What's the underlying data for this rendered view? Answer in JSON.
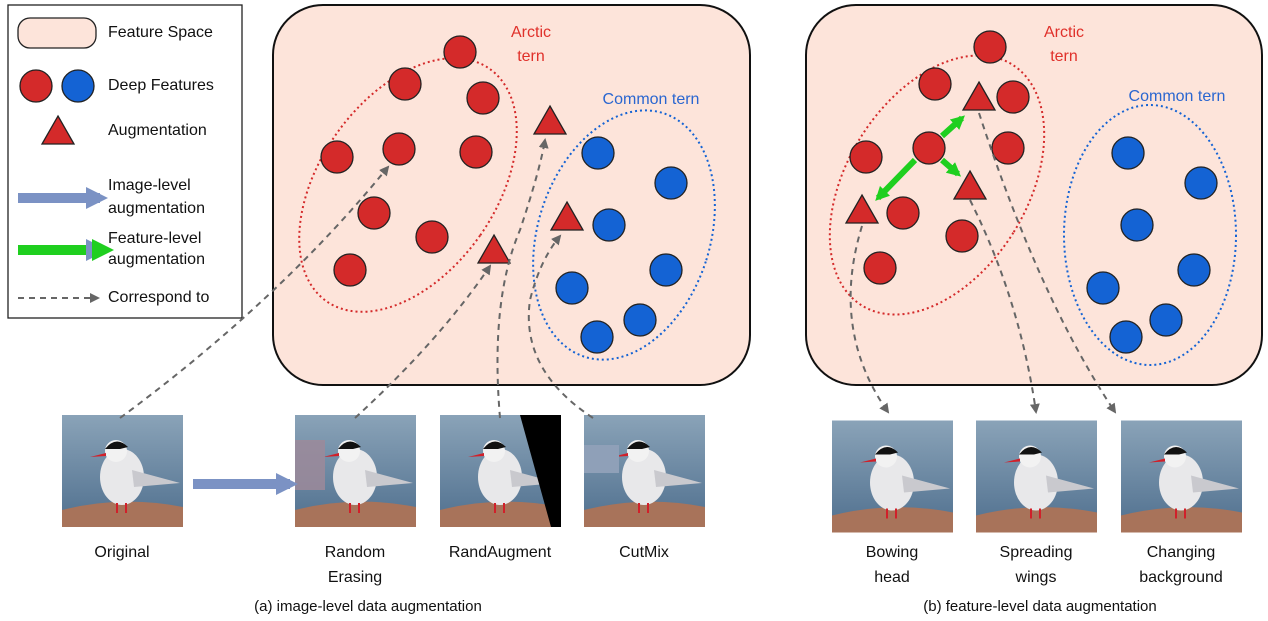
{
  "legend": {
    "items": [
      "Feature Space",
      "Deep Features",
      "Augmentation",
      [
        "Image-level",
        "augmentation"
      ],
      [
        "Feature-level",
        "augmentation"
      ],
      "Correspond to"
    ]
  },
  "panels": [
    {
      "arctic_label": [
        "Arctic",
        "tern"
      ],
      "common_label": "Common tern",
      "images": [
        {
          "caption": [
            "Original"
          ]
        },
        {
          "caption": [
            "Random",
            "Erasing"
          ]
        },
        {
          "caption": [
            "RandAugment"
          ]
        },
        {
          "caption": [
            "CutMix"
          ]
        }
      ],
      "caption": "(a) image-level data augmentation"
    },
    {
      "arctic_label": [
        "Arctic",
        "tern"
      ],
      "common_label": "Common tern",
      "images": [
        {
          "caption": [
            "Bowing",
            "head"
          ]
        },
        {
          "caption": [
            "Spreading",
            "wings"
          ]
        },
        {
          "caption": [
            "Changing",
            "background"
          ]
        }
      ],
      "caption": "(b) feature-level data augmentation"
    }
  ]
}
